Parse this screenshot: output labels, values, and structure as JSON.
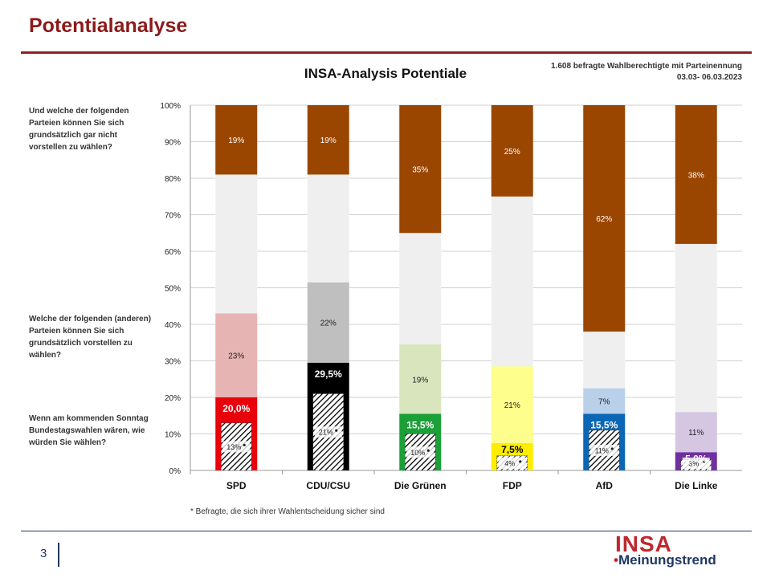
{
  "page": {
    "title": "Potentialanalyse",
    "sample_line1": "1.608 befragte Wahlberechtigte mit Parteinennung",
    "sample_line2": "03.03- 06.03.2023",
    "questions": [
      "Und welche der folgenden Parteien können Sie sich grundsätzlich  gar nicht vorstellen zu wählen?",
      "Welche der folgenden (anderen) Parteien können Sie sich  grundsätzlich vorstellen zu wählen?",
      "Wenn am kommenden Sonntag Bundestagswahlen wären, wie würden Sie wählen?"
    ],
    "footnote": "* Befragte, die sich ihrer Wahlentscheidung sicher sind",
    "page_number": "3",
    "logo_text": "INSA",
    "logo_dot": "•",
    "logo_subtext": "Meinungstrend"
  },
  "chart_data": {
    "type": "bar",
    "stacked": true,
    "title": "INSA-Analysis Potentiale",
    "ylim": [
      0,
      100
    ],
    "yticks": [
      "0%",
      "10%",
      "20%",
      "30%",
      "40%",
      "50%",
      "60%",
      "70%",
      "80%",
      "90%",
      "100%"
    ],
    "categories": [
      "SPD",
      "CDU/CSU",
      "Die Grünen",
      "FDP",
      "AfD",
      "Die Linke"
    ],
    "vote": [
      20.0,
      29.5,
      15.5,
      7.5,
      15.5,
      5.0
    ],
    "vote_labels": [
      "20,0%",
      "29,5%",
      "15,5%",
      "7,5%",
      "15,5%",
      "5,0%"
    ],
    "sure_vote": [
      13,
      21,
      10,
      4,
      11,
      3
    ],
    "sure_labels": [
      "13%",
      "21%",
      "10%",
      "4%",
      "11%",
      "3%"
    ],
    "potential": [
      23,
      22,
      19,
      21,
      7,
      11
    ],
    "potential_labels": [
      "23%",
      "22%",
      "19%",
      "21%",
      "7%",
      "11%"
    ],
    "rejection": [
      19,
      19,
      35,
      25,
      62,
      38
    ],
    "rejection_labels": [
      "19%",
      "19%",
      "35%",
      "25%",
      "62%",
      "38%"
    ],
    "vote_colors": [
      "#e8000b",
      "#000000",
      "#1aa037",
      "#ffed00",
      "#0a67b5",
      "#7030a0"
    ],
    "potential_colors": [
      "#e7b4b4",
      "#bfbfbf",
      "#d9e6bd",
      "#fefe8c",
      "#b9d0ea",
      "#d5c6e2"
    ],
    "vote_label_colors": [
      "#ffffff",
      "#ffffff",
      "#ffffff",
      "#000000",
      "#ffffff",
      "#ffffff"
    ],
    "remainder_color": "#efefef",
    "rejection_color": "#9a4600",
    "grid": true
  }
}
